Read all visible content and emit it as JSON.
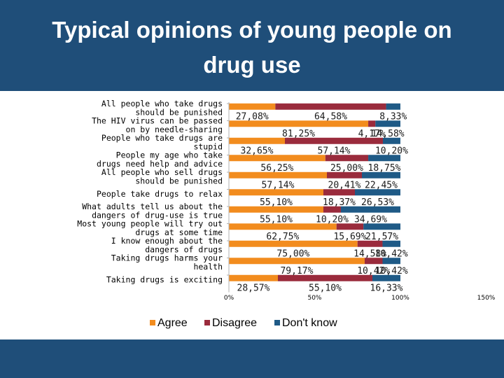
{
  "slide": {
    "title_line1": "Typical opinions of young people on",
    "title_line2": "drug use"
  },
  "colors": {
    "background": "#1f4e79",
    "agree": "#f28c1e",
    "disagree": "#9a2b3c",
    "dont_know": "#1f5a86"
  },
  "chart_data": {
    "type": "bar",
    "orientation": "horizontal",
    "stacked": true,
    "title": "Typical opinions of young people on drug use",
    "xlim": [
      0,
      150
    ],
    "x_ticks": [
      "0%",
      "50%",
      "100%",
      "150%"
    ],
    "legend_position": "bottom",
    "categories": [
      [
        "All people who take drugs",
        "should be punished"
      ],
      [
        "The HIV virus can be passed",
        "on by needle-sharing"
      ],
      [
        "People who take drugs are",
        "stupid"
      ],
      [
        "People my age who take",
        "drugs need help and advice"
      ],
      [
        "All people who sell drugs",
        "should be punished"
      ],
      [
        "People  take drugs to relax"
      ],
      [
        "What adults tell us about the",
        "dangers of drug-use is true"
      ],
      [
        "Most young people will try out",
        "drugs at some time"
      ],
      [
        "I know enough about the",
        "dangers of drugs"
      ],
      [
        "Taking drugs harms your",
        "health"
      ],
      [
        "Taking drugs is exciting"
      ]
    ],
    "series": [
      {
        "name": "Agree",
        "color": "#f28c1e",
        "values": [
          27.08,
          81.25,
          32.65,
          56.25,
          57.14,
          55.1,
          55.1,
          62.75,
          75.0,
          79.17,
          28.57
        ],
        "labels": [
          "27,08%",
          "81,25%",
          "32,65%",
          "56,25%",
          "57,14%",
          "55,10%",
          "55,10%",
          "62,75%",
          "75,00%",
          "79,17%",
          "28,57%"
        ]
      },
      {
        "name": "Disagree",
        "color": "#9a2b3c",
        "values": [
          64.58,
          4.17,
          57.14,
          25.0,
          20.41,
          18.37,
          10.2,
          15.69,
          14.58,
          10.42,
          55.1
        ],
        "labels": [
          "64,58%",
          "4,17%",
          "57,14%",
          "25,00%",
          "20,41%",
          "18,37%",
          "10,20%",
          "15,69%",
          "14,58%",
          "10,42%",
          "55,10%"
        ]
      },
      {
        "name": "Don't know",
        "color": "#1f5a86",
        "values": [
          8.33,
          14.58,
          10.2,
          18.75,
          22.45,
          26.53,
          34.69,
          21.57,
          10.42,
          10.42,
          16.33
        ],
        "labels": [
          "8,33%",
          "14,58%",
          "10,20%",
          "18,75%",
          "22,45%",
          "26,53%",
          "34,69%",
          "21,57%",
          "10,42%",
          "10,42%",
          "16,33%"
        ]
      }
    ]
  }
}
